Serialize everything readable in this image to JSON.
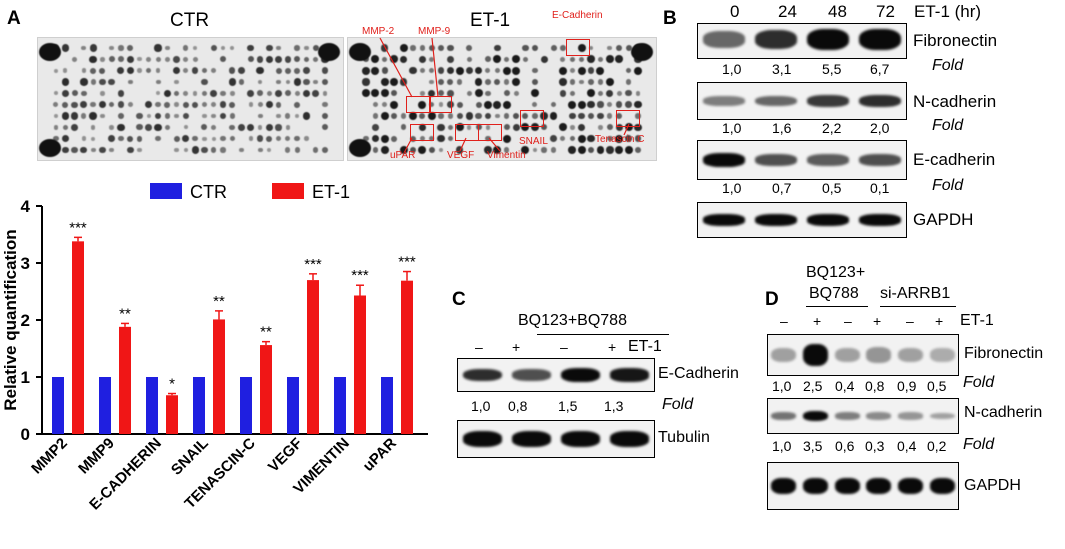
{
  "panelA": {
    "label": "A",
    "array_titles": [
      "CTR",
      "ET-1"
    ],
    "highlights": [
      "MMP-2",
      "MMP-9",
      "E-Cadherin",
      "uPAR",
      "VEGF",
      "Vimentin",
      "SNAIL",
      "Tenascin C"
    ]
  },
  "panelB": {
    "label": "B",
    "header": [
      "0",
      "24",
      "48",
      "72"
    ],
    "treatment": "ET-1 (hr)",
    "fold_label": "Fold",
    "rows": [
      {
        "name": "Fibronectin",
        "fold": [
          "1,0",
          "3,1",
          "5,5",
          "6,7"
        ]
      },
      {
        "name": "N-cadherin",
        "fold": [
          "1,0",
          "1,6",
          "2,2",
          "2,0"
        ]
      },
      {
        "name": "E-cadherin",
        "fold": [
          "1,0",
          "0,7",
          "0,5",
          "0,1"
        ]
      },
      {
        "name": "GAPDH",
        "fold": []
      }
    ]
  },
  "panelC": {
    "label": "C",
    "group": "BQ123+BQ788",
    "signs": [
      "–",
      "+",
      "–",
      "+"
    ],
    "treatment": "ET-1",
    "fold_label": "Fold",
    "rows": [
      {
        "name": "E-Cadherin",
        "fold": [
          "1,0",
          "0,8",
          "1,5",
          "1,3"
        ]
      },
      {
        "name": "Tubulin",
        "fold": []
      }
    ]
  },
  "panelD": {
    "label": "D",
    "group1": "BQ123+\nBQ788",
    "group1_line1": "BQ123+",
    "group1_line2": "BQ788",
    "group2": "si-ARRB1",
    "signs": [
      "–",
      "+",
      "–",
      "+",
      "–",
      "+"
    ],
    "treatment": "ET-1",
    "fold_label": "Fold",
    "rows": [
      {
        "name": "Fibronectin",
        "fold": [
          "1,0",
          "2,5",
          "0,4",
          "0,8",
          "0,9",
          "0,5"
        ]
      },
      {
        "name": "N-cadherin",
        "fold": [
          "1,0",
          "3,5",
          "0,6",
          "0,3",
          "0,4",
          "0,2"
        ]
      },
      {
        "name": "GAPDH",
        "fold": []
      }
    ]
  },
  "chart_data": {
    "type": "bar",
    "categories": [
      "MMP2",
      "MMP9",
      "E-CADHERIN",
      "SNAIL",
      "TENASCIN-C",
      "VEGF",
      "VIMENTIN",
      "uPAR"
    ],
    "series": [
      {
        "name": "CTR",
        "color": "#1f1fe0",
        "values": [
          1,
          1,
          1,
          1,
          1,
          1,
          1,
          1
        ]
      },
      {
        "name": "ET-1",
        "color": "#f01616",
        "values": [
          3.38,
          1.88,
          0.68,
          2.01,
          1.56,
          2.7,
          2.43,
          2.69
        ],
        "errors": [
          0.07,
          0.06,
          0.03,
          0.15,
          0.06,
          0.11,
          0.18,
          0.16
        ],
        "significance": [
          "***",
          "**",
          "*",
          "**",
          "**",
          "***",
          "***",
          "***"
        ]
      }
    ],
    "ylabel": "Relative quantification",
    "ylim": [
      0,
      4
    ],
    "yticks": [
      0,
      1,
      2,
      3,
      4
    ],
    "legend": "top"
  }
}
